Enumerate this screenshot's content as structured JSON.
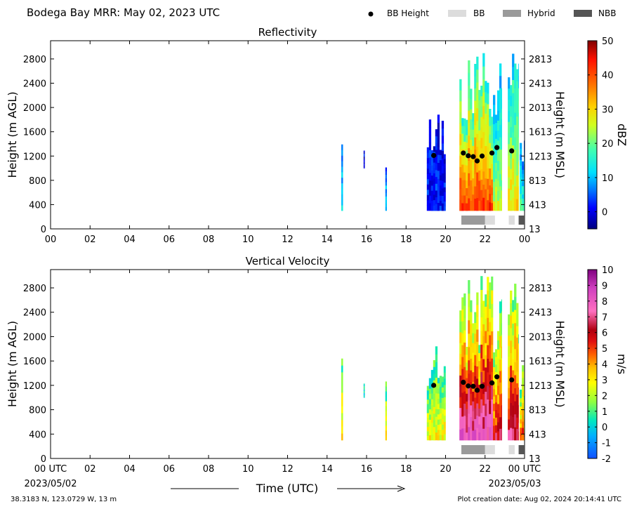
{
  "header": {
    "title": "Bodega Bay MRR:  May 02, 2023 UTC",
    "legend": [
      {
        "label": "BB Height",
        "kind": "dot",
        "color": "#000000"
      },
      {
        "label": "BB",
        "kind": "rect",
        "color": "#dcdcdc"
      },
      {
        "label": "Hybrid",
        "kind": "rect",
        "color": "#9a9a9a"
      },
      {
        "label": "NBB",
        "kind": "rect",
        "color": "#555555"
      }
    ]
  },
  "footer": {
    "location": "38.3183 N, 123.0729 W, 13 m",
    "creation": "Plot creation date: Aug 02, 2024 20:14:41 UTC",
    "xlabel": "Time (UTC)",
    "start_utc": "00 UTC",
    "start_date": "2023/05/02",
    "end_utc": "00 UTC",
    "end_date": "2023/05/03"
  },
  "chart_data": [
    {
      "type": "heatmap",
      "title": "Reflectivity",
      "ylabel": "Height (m AGL)",
      "ylabel_right": "Height (m MSL)",
      "xticks": [
        "00",
        "02",
        "04",
        "06",
        "08",
        "10",
        "12",
        "14",
        "16",
        "18",
        "20",
        "22",
        "00"
      ],
      "xlim_hours": [
        0,
        24
      ],
      "yticks": [
        0,
        400,
        800,
        1200,
        1600,
        2000,
        2400,
        2800
      ],
      "yticks_right": [
        "13",
        "413",
        "813",
        "1213",
        "1613",
        "2013",
        "2413",
        "2813"
      ],
      "ylim": [
        0,
        3100
      ],
      "colorbar": {
        "label": "dBZ",
        "ticks": [
          0,
          10,
          20,
          30,
          40,
          50
        ],
        "range": [
          -5,
          50
        ]
      },
      "bb_height_points": [
        [
          19.4,
          1210
        ],
        [
          20.9,
          1250
        ],
        [
          21.15,
          1205
        ],
        [
          21.4,
          1190
        ],
        [
          21.6,
          1120
        ],
        [
          21.85,
          1200
        ],
        [
          22.35,
          1250
        ],
        [
          22.6,
          1340
        ],
        [
          23.35,
          1285
        ]
      ],
      "bb_type_bar": [
        {
          "start": 20.8,
          "end": 22.0,
          "type": "Hybrid"
        },
        {
          "start": 22.0,
          "end": 22.5,
          "type": "BB"
        },
        {
          "start": 23.2,
          "end": 23.5,
          "type": "BB"
        },
        {
          "start": 23.7,
          "end": 24.0,
          "type": "NBB"
        }
      ],
      "echo_columns": [
        {
          "start": 14.72,
          "end": 14.8,
          "base": 300,
          "top": 1700,
          "level": 12
        },
        {
          "start": 15.85,
          "end": 15.9,
          "base": 1000,
          "top": 1300,
          "level": 0
        },
        {
          "start": 16.95,
          "end": 17.02,
          "base": 300,
          "top": 1550,
          "level": 10
        },
        {
          "start": 19.05,
          "end": 20.0,
          "base": 300,
          "top": 1900,
          "level": 2
        },
        {
          "start": 20.7,
          "end": 22.4,
          "base": 300,
          "top": 3000,
          "level": 36
        },
        {
          "start": 22.4,
          "end": 22.85,
          "base": 300,
          "top": 2800,
          "level": 22
        },
        {
          "start": 23.15,
          "end": 23.7,
          "base": 300,
          "top": 3000,
          "level": 26
        },
        {
          "start": 23.75,
          "end": 24.0,
          "base": 300,
          "top": 1600,
          "level": 15
        }
      ]
    },
    {
      "type": "heatmap",
      "title": "Vertical Velocity",
      "ylabel": "Height (m AGL)",
      "ylabel_right": "Height (m MSL)",
      "xticks": [
        "00 UTC",
        "02",
        "04",
        "06",
        "08",
        "10",
        "12",
        "14",
        "16",
        "18",
        "20",
        "22",
        "00 UTC"
      ],
      "xlim_hours": [
        0,
        24
      ],
      "yticks": [
        0,
        400,
        800,
        1200,
        1600,
        2000,
        2400,
        2800
      ],
      "yticks_right": [
        "13",
        "413",
        "813",
        "1213",
        "1613",
        "2013",
        "2413",
        "2813"
      ],
      "ylim": [
        0,
        3100
      ],
      "colorbar": {
        "label": "m/s",
        "ticks": [
          -2,
          -1,
          0,
          1,
          2,
          3,
          4,
          5,
          6,
          7,
          8,
          9,
          10
        ],
        "range": [
          -2,
          10
        ]
      },
      "bb_height_points": [
        [
          19.4,
          1200
        ],
        [
          20.9,
          1250
        ],
        [
          21.15,
          1190
        ],
        [
          21.4,
          1185
        ],
        [
          21.6,
          1120
        ],
        [
          21.85,
          1185
        ],
        [
          22.35,
          1240
        ],
        [
          22.6,
          1340
        ],
        [
          23.35,
          1290
        ]
      ],
      "bb_type_bar": [
        {
          "start": 20.8,
          "end": 22.0,
          "type": "Hybrid"
        },
        {
          "start": 22.0,
          "end": 22.5,
          "type": "BB"
        },
        {
          "start": 23.2,
          "end": 23.5,
          "type": "BB"
        },
        {
          "start": 23.7,
          "end": 24.0,
          "type": "NBB"
        }
      ],
      "echo_columns": [
        {
          "start": 14.72,
          "end": 14.8,
          "base": 300,
          "top": 1700,
          "level": 3
        },
        {
          "start": 15.85,
          "end": 15.9,
          "base": 1000,
          "top": 1300,
          "level": 0.5
        },
        {
          "start": 16.95,
          "end": 17.02,
          "base": 300,
          "top": 1600,
          "level": 2.5
        },
        {
          "start": 19.05,
          "end": 20.0,
          "base": 300,
          "top": 1900,
          "level": 2.5
        },
        {
          "start": 20.7,
          "end": 22.4,
          "base": 300,
          "top": 3000,
          "level": 6.5
        },
        {
          "start": 22.4,
          "end": 22.85,
          "base": 300,
          "top": 2800,
          "level": 5
        },
        {
          "start": 23.15,
          "end": 23.7,
          "base": 300,
          "top": 3000,
          "level": 5.5
        },
        {
          "start": 23.75,
          "end": 24.0,
          "base": 300,
          "top": 1600,
          "level": 4
        }
      ]
    }
  ]
}
